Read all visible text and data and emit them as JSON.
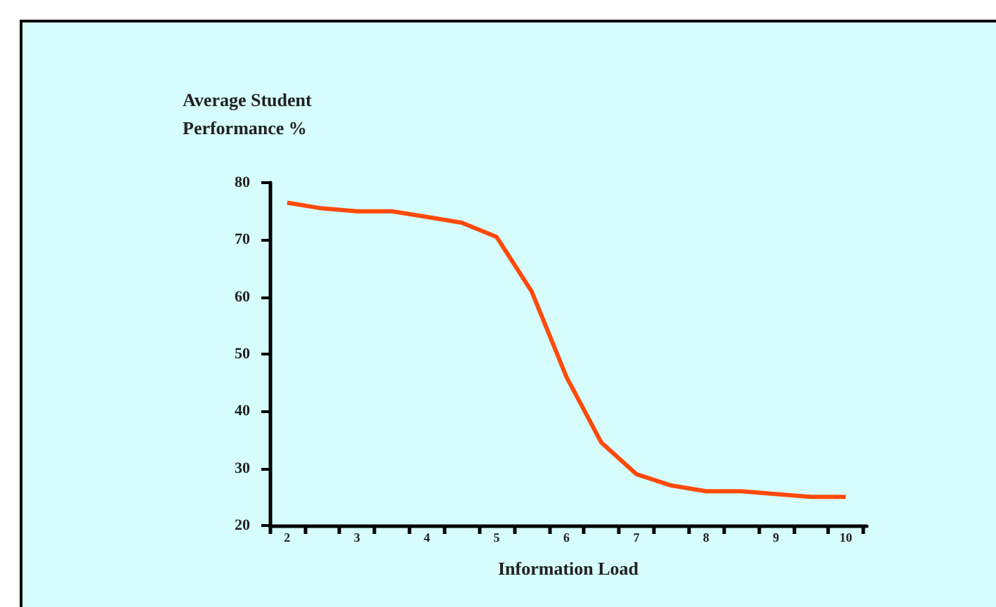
{
  "chart_data": {
    "type": "line",
    "xlabel": "Information Load",
    "ylabel": "Average Student Performance %",
    "x": [
      2,
      2.5,
      3,
      3.5,
      4,
      4.5,
      5,
      5.5,
      6,
      6.5,
      7,
      7.5,
      8,
      8.5,
      9,
      9.5,
      10
    ],
    "series": [
      {
        "color": "#ff4a0a",
        "values": [
          76.5,
          75.5,
          75,
          75,
          74,
          73,
          70.5,
          61,
          46,
          34.5,
          29,
          27,
          26,
          26,
          25.5,
          25,
          25
        ]
      }
    ],
    "xlim": [
      1.75,
      10.3
    ],
    "xticks": [
      {
        "value": 1.75,
        "label": null
      },
      2,
      {
        "value": 2.25,
        "label": null
      },
      {
        "value": 2.75,
        "label": null
      },
      3,
      {
        "value": 3.25,
        "label": null
      },
      {
        "value": 3.75,
        "label": null
      },
      4,
      {
        "value": 4.25,
        "label": null
      },
      {
        "value": 4.75,
        "label": null
      },
      5,
      {
        "value": 5.25,
        "label": null
      },
      {
        "value": 5.75,
        "label": null
      },
      6,
      {
        "value": 6.25,
        "label": null
      },
      {
        "value": 6.75,
        "label": null
      },
      7,
      {
        "value": 7.25,
        "label": null
      },
      {
        "value": 7.75,
        "label": null
      },
      8,
      {
        "value": 8.25,
        "label": null
      },
      {
        "value": 8.75,
        "label": null
      },
      9,
      {
        "value": 9.25,
        "label": null
      },
      {
        "value": 9.75,
        "label": null
      },
      10,
      {
        "value": 10.25,
        "label": null
      }
    ],
    "ylim": [
      20,
      80
    ],
    "yticks": [
      20,
      30,
      40,
      50,
      60,
      70,
      80
    ],
    "grid": false,
    "marker": "none",
    "line_style": "solid"
  }
}
